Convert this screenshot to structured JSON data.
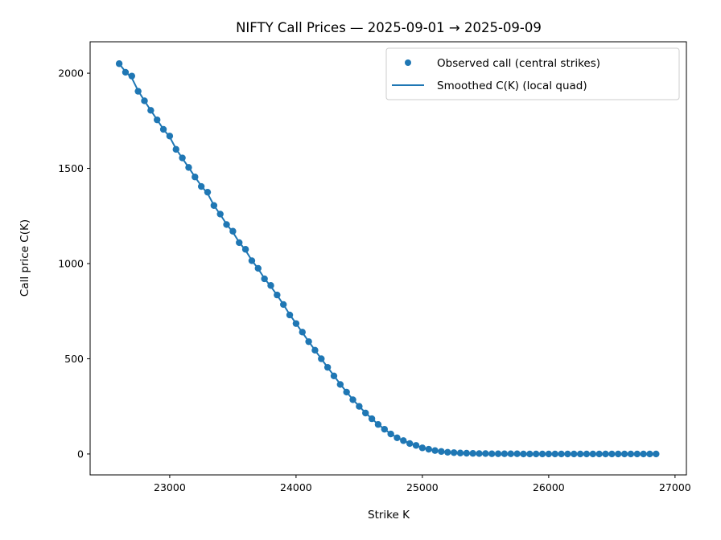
{
  "chart_data": {
    "type": "scatter",
    "title": "NIFTY Call Prices — 2025-09-01 → 2025-09-09",
    "xlabel": "Strike K",
    "ylabel": "Call price C(K)",
    "xlim": [
      22370,
      27090
    ],
    "ylim": [
      -110,
      2165
    ],
    "xticks": [
      23000,
      24000,
      25000,
      26000,
      27000
    ],
    "xtick_labels": [
      "23000",
      "24000",
      "25000",
      "26000",
      "27000"
    ],
    "yticks": [
      0,
      500,
      1000,
      1500,
      2000
    ],
    "ytick_labels": [
      "0",
      "500",
      "1000",
      "1500",
      "2000"
    ],
    "grid": false,
    "legend_position": "top-right",
    "color": "#1f77b4",
    "series": [
      {
        "name": "Observed call (central strikes)",
        "kind": "scatter",
        "x": [
          22600,
          22650,
          22700,
          22750,
          22800,
          22850,
          22900,
          22950,
          23000,
          23050,
          23100,
          23150,
          23200,
          23250,
          23300,
          23350,
          23400,
          23450,
          23500,
          23550,
          23600,
          23650,
          23700,
          23750,
          23800,
          23850,
          23900,
          23950,
          24000,
          24050,
          24100,
          24150,
          24200,
          24250,
          24300,
          24350,
          24400,
          24450,
          24500,
          24550,
          24600,
          24650,
          24700,
          24750,
          24800,
          24850,
          24900,
          24950,
          25000,
          25050,
          25100,
          25150,
          25200,
          25250,
          25300,
          25350,
          25400,
          25450,
          25500,
          25550,
          25600,
          25650,
          25700,
          25750,
          25800,
          25850,
          25900,
          25950,
          26000,
          26050,
          26100,
          26150,
          26200,
          26250,
          26300,
          26350,
          26400,
          26450,
          26500,
          26550,
          26600,
          26650,
          26700,
          26750,
          26800,
          26850
        ],
        "y": [
          2050,
          2005,
          1985,
          1905,
          1855,
          1805,
          1755,
          1705,
          1670,
          1600,
          1555,
          1505,
          1455,
          1405,
          1375,
          1305,
          1260,
          1205,
          1170,
          1110,
          1075,
          1015,
          975,
          920,
          885,
          835,
          785,
          730,
          685,
          640,
          590,
          545,
          500,
          455,
          410,
          365,
          325,
          285,
          250,
          215,
          185,
          155,
          130,
          105,
          85,
          70,
          55,
          45,
          32,
          25,
          18,
          13,
          9,
          7,
          5,
          4,
          3,
          2,
          2,
          1,
          1,
          1,
          1,
          1,
          0,
          0,
          0,
          0,
          0,
          0,
          0,
          0,
          0,
          0,
          0,
          0,
          0,
          0,
          0,
          0,
          0,
          0,
          0,
          0,
          0,
          0
        ]
      },
      {
        "name": "Smoothed C(K) (local quad)",
        "kind": "line",
        "x": [
          22600,
          22650,
          22700,
          22750,
          22800,
          22850,
          22900,
          22950,
          23000,
          23050,
          23100,
          23150,
          23200,
          23250,
          23300,
          23350,
          23400,
          23450,
          23500,
          23550,
          23600,
          23650,
          23700,
          23750,
          23800,
          23850,
          23900,
          23950,
          24000,
          24050,
          24100,
          24150,
          24200,
          24250,
          24300,
          24350,
          24400,
          24450,
          24500,
          24550,
          24600,
          24650,
          24700,
          24750,
          24800,
          24850,
          24900,
          24950,
          25000,
          25050,
          25100,
          25150,
          25200,
          25250,
          25300,
          25350,
          25400,
          25450,
          25500,
          25550,
          25600,
          25650,
          25700,
          25750,
          25800,
          25850,
          25900,
          25950,
          26000,
          26050,
          26100,
          26150,
          26200,
          26250,
          26300,
          26350,
          26400,
          26450,
          26500,
          26550,
          26600,
          26650,
          26700,
          26750,
          26800,
          26850
        ],
        "y": [
          2050,
          2008,
          1975,
          1908,
          1855,
          1805,
          1756,
          1706,
          1665,
          1603,
          1553,
          1505,
          1455,
          1408,
          1368,
          1306,
          1258,
          1207,
          1165,
          1112,
          1070,
          1017,
          973,
          922,
          880,
          834,
          785,
          732,
          686,
          638,
          591,
          545,
          500,
          455,
          411,
          367,
          326,
          286,
          250,
          216,
          185,
          156,
          130,
          106,
          86,
          70,
          56,
          45,
          33,
          25,
          18,
          13,
          9,
          7,
          5,
          4,
          3,
          2,
          2,
          1,
          1,
          1,
          1,
          1,
          0,
          0,
          0,
          0,
          0,
          0,
          0,
          0,
          0,
          0,
          0,
          0,
          0,
          0,
          0,
          0,
          0,
          0,
          0,
          0,
          0,
          0
        ]
      }
    ]
  }
}
